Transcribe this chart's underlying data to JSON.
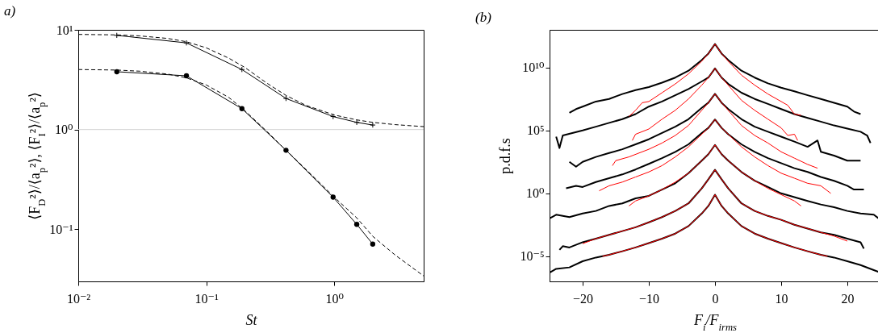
{
  "chart_data": [
    {
      "type": "line",
      "title": "a)",
      "xlabel": "St",
      "ylabel": "⟨F$_{D}$²⟩/⟨a$_{p}$²⟩, ⟨F$_{I}$²⟩/⟨a$_{p}$²⟩",
      "log": "xy",
      "xlim": [
        0.01,
        5
      ],
      "ylim": [
        0.03,
        10
      ],
      "xticks": [
        {
          "value": 0.01,
          "label": "10⁻²"
        },
        {
          "value": 0.1,
          "label": "10⁻¹"
        },
        {
          "value": 1,
          "label": "10⁰"
        }
      ],
      "yticks": [
        {
          "value": 0.1,
          "label": "10⁻¹"
        },
        {
          "value": 1,
          "label": "10⁰"
        },
        {
          "value": 10,
          "label": "10¹"
        }
      ],
      "ref_lines": [
        {
          "axis": "y",
          "value": 1,
          "color": "#d3d3d3"
        }
      ],
      "series": [
        {
          "color": "#000000",
          "marker": "cross",
          "line_style": "solid",
          "x": [
            0.02,
            0.07,
            0.19,
            0.42,
            0.98,
            1.5,
            2.0
          ],
          "values": [
            8.8,
            7.4,
            4.0,
            2.05,
            1.35,
            1.18,
            1.11
          ]
        },
        {
          "color": "#000000",
          "marker": "circle",
          "line_style": "solid",
          "x": [
            0.02,
            0.07,
            0.19,
            0.42,
            0.98,
            1.5,
            2.0
          ],
          "values": [
            3.8,
            3.46,
            1.62,
            0.62,
            0.21,
            0.112,
            0.071
          ]
        },
        {
          "color": "#000000",
          "marker": "none",
          "line_style": "dashed",
          "x": [
            0.01,
            0.02,
            0.03,
            0.05,
            0.07,
            0.1,
            0.15,
            0.2,
            0.3,
            0.42,
            0.6,
            1,
            1.5,
            2,
            3,
            5
          ],
          "values": [
            9.0,
            8.9,
            8.7,
            8.2,
            7.6,
            6.6,
            5.2,
            4.2,
            2.9,
            2.2,
            1.75,
            1.4,
            1.25,
            1.18,
            1.12,
            1.07
          ]
        },
        {
          "color": "#000000",
          "marker": "none",
          "line_style": "dashed",
          "x": [
            0.01,
            0.02,
            0.03,
            0.05,
            0.07,
            0.1,
            0.15,
            0.2,
            0.3,
            0.42,
            0.6,
            1,
            1.5,
            2,
            3,
            5
          ],
          "values": [
            4.0,
            3.95,
            3.85,
            3.6,
            3.3,
            2.8,
            2.1,
            1.55,
            0.95,
            0.62,
            0.4,
            0.21,
            0.13,
            0.085,
            0.055,
            0.034
          ]
        }
      ]
    },
    {
      "type": "line",
      "title": "(b)",
      "xlabel": "F$_{i}$/F$_{irms}$",
      "ylabel": "p.d.f.s",
      "log": "y",
      "xlim": [
        -25,
        25
      ],
      "ylim": [
        1e-07,
        10000000000000.0
      ],
      "xticks": [
        {
          "value": -20,
          "label": "−20"
        },
        {
          "value": -10,
          "label": "−10"
        },
        0,
        10,
        20
      ],
      "yticks": [
        {
          "value": 1e-05,
          "label": "10⁻⁵"
        },
        {
          "value": 1,
          "label": "10⁰"
        },
        {
          "value": 100000.0,
          "label": "10⁵"
        },
        {
          "value": 10000000000.0,
          "label": "10¹⁰"
        }
      ],
      "series": [
        {
          "color": "#000000",
          "x": [
            -22,
            -21,
            -20,
            -18,
            -16,
            -14,
            -12,
            -10,
            -8,
            -6,
            -4,
            -2,
            -1,
            0,
            1,
            2,
            4,
            6,
            8,
            10,
            12,
            14,
            16,
            18,
            20,
            21,
            22
          ],
          "values": [
            2500000.0,
            5000000.0,
            7900000.0,
            20000000.0,
            32000000.0,
            79000000.0,
            160000000.0,
            280000000.0,
            630000000.0,
            1600000000.0,
            5600000000.0,
            40000000000.0,
            130000000000.0,
            740000000000.0,
            130000000000.0,
            40000000000.0,
            5600000000.0,
            1600000000.0,
            560000000.0,
            250000000.0,
            130000000.0,
            63000000.0,
            32000000.0,
            16000000.0,
            7900000.0,
            3200000.0,
            2000000.0
          ]
        },
        {
          "color": "#000000",
          "x": [
            -24,
            -23.5,
            -23,
            -20,
            -18,
            -16,
            -14,
            -12,
            -10,
            -8,
            -6,
            -4,
            -2,
            -1,
            0,
            1,
            2,
            4,
            6,
            8,
            10,
            12,
            14,
            16,
            18,
            20,
            22,
            23,
            23.5
          ],
          "values": [
            32000.0,
            4000.0,
            40000.0,
            100000.0,
            200000.0,
            400000.0,
            790000.0,
            2000000.0,
            7900000.0,
            20000000.0,
            63000000.0,
            200000000.0,
            790000000.0,
            1600000000.0,
            8500000000.0,
            1600000000.0,
            500000000.0,
            100000000.0,
            32000000.0,
            13000000.0,
            5000000.0,
            2000000.0,
            1000000.0,
            500000.0,
            250000.0,
            140000.0,
            79000.0,
            40000.0,
            10000.0
          ]
        },
        {
          "color": "#000000",
          "x": [
            -22,
            -21,
            -20,
            -18,
            -16,
            -14,
            -12,
            -10,
            -8,
            -6,
            -4,
            -2,
            -1,
            0,
            1,
            2,
            4,
            6,
            8,
            10,
            12,
            14,
            15.5,
            16,
            18,
            20,
            22
          ],
          "values": [
            320,
            130,
            320,
            790,
            1600.0,
            3200.0,
            7900.0,
            20000.0,
            63000.0,
            200000.0,
            790000.0,
            6300000.0,
            16000000.0,
            81000000.0,
            16000000.0,
            5000000.0,
            790000.0,
            200000.0,
            79000.0,
            32000.0,
            13000.0,
            5000.0,
            16000.0,
            2000.0,
            1000.0,
            400,
            400
          ]
        },
        {
          "color": "#000000",
          "x": [
            -22.5,
            -21,
            -20,
            -18,
            -16,
            -14,
            -12,
            -10,
            -8,
            -6,
            -4,
            -2,
            -1,
            0,
            1,
            2,
            4,
            6,
            8,
            10,
            12,
            14,
            16,
            18,
            20,
            21,
            22.5
          ],
          "values": [
            2.5,
            4.0,
            3.2,
            7.9,
            16,
            32,
            79,
            220,
            630,
            2000.0,
            7900.0,
            63000.0,
            160000.0,
            740000.0,
            160000.0,
            50000.0,
            7900.0,
            2000.0,
            630,
            250,
            100,
            50,
            20,
            10,
            4.0,
            2.0,
            2.0
          ]
        },
        {
          "color": "#000000",
          "x": [
            -25,
            -24,
            -22,
            -20,
            -18,
            -16,
            -14,
            -12,
            -10,
            -8,
            -6,
            -4,
            -2,
            -1,
            0,
            1,
            2,
            4,
            6,
            8,
            10,
            12,
            14,
            16,
            18,
            20,
            22,
            24,
            25
          ],
          "values": [
            0.01,
            0.02,
            0.013,
            0.025,
            0.04,
            0.1,
            0.16,
            0.4,
            0.63,
            2.0,
            6.3,
            40,
            400,
            1300.0,
            7100.0,
            1300.0,
            400,
            50,
            10,
            3.2,
            1.0,
            0.5,
            0.25,
            0.13,
            0.079,
            0.04,
            0.025,
            0.02,
            0.0079
          ]
        },
        {
          "color": "#000000",
          "x": [
            -23.5,
            -23,
            -22,
            -20,
            -18,
            -16,
            -14,
            -12,
            -10,
            -8,
            -6,
            -4,
            -2,
            -1,
            0,
            1,
            2,
            4,
            6,
            8,
            10,
            12,
            14,
            16,
            18,
            20,
            22,
            22.5
          ],
          "values": [
            3.2e-05,
            6.3e-05,
            5e-05,
            0.00013,
            0.00025,
            0.0005,
            0.001,
            0.002,
            0.005,
            0.013,
            0.04,
            0.16,
            2.5,
            13,
            74,
            13,
            2.5,
            0.16,
            0.04,
            0.016,
            0.0079,
            0.0032,
            0.0016,
            0.00079,
            0.0005,
            0.00025,
            0.00013,
            4e-05
          ]
        },
        {
          "color": "#000000",
          "x": [
            -25,
            -24,
            -22,
            -20,
            -18,
            -16,
            -14,
            -12,
            -10,
            -8,
            -6,
            -4,
            -2,
            -1,
            0,
            1,
            2,
            4,
            6,
            8,
            10,
            12,
            14,
            16,
            18,
            20,
            22,
            24,
            25
          ],
          "values": [
            5e-07,
            1e-06,
            1.3e-06,
            4e-06,
            7.9e-06,
            1.3e-05,
            2.5e-05,
            5e-05,
            0.00011,
            0.00025,
            0.00063,
            0.0025,
            0.025,
            0.1,
            0.78,
            0.1,
            0.025,
            0.0025,
            0.00063,
            0.00025,
            0.00011,
            5e-05,
            2.5e-05,
            1.3e-05,
            7.9e-06,
            4e-06,
            2e-06,
            7.9e-07,
            5e-07
          ]
        },
        {
          "color": "#ff0000",
          "x": [
            -13,
            -12,
            -11,
            -10,
            -8,
            -6,
            -4,
            -2,
            -1,
            0,
            1,
            2,
            4,
            6,
            8,
            10,
            11,
            12,
            13
          ],
          "values": [
            1300000.0,
            4000000.0,
            16000000.0,
            20000000.0,
            100000000.0,
            500000000.0,
            3200000000.0,
            32000000000.0,
            130000000000.0,
            740000000000.0,
            130000000000.0,
            32000000000.0,
            2500000000.0,
            400000000.0,
            79000000.0,
            20000000.0,
            10000000.0,
            2000000.0,
            1600000.0
          ]
        },
        {
          "color": "#ff0000",
          "x": [
            -12.5,
            -12,
            -10,
            -8,
            -6,
            -4,
            -2,
            -1,
            0,
            1,
            2,
            4,
            6,
            8,
            10,
            11,
            12,
            12.5
          ],
          "values": [
            16000.0,
            50000.0,
            130000.0,
            790000.0,
            4000000.0,
            32000000.0,
            400000000.0,
            1600000000.0,
            8500000000.0,
            1600000000.0,
            400000000.0,
            25000000.0,
            4000000.0,
            790000.0,
            160000.0,
            40000.0,
            50000.0,
            16000.0
          ]
        },
        {
          "color": "#ff0000",
          "x": [
            -15.5,
            -15,
            -13,
            -10,
            -8,
            -6,
            -4,
            -2,
            -1,
            0,
            1,
            2,
            4,
            6,
            8,
            10,
            12,
            14,
            15.5
          ],
          "values": [
            160,
            400,
            790,
            3200.0,
            10000.0,
            40000.0,
            250000.0,
            4000000.0,
            16000000.0,
            81000000.0,
            16000000.0,
            4000000.0,
            250000.0,
            40000.0,
            10000.0,
            2000.0,
            630,
            200,
            100
          ]
        },
        {
          "color": "#ff0000",
          "x": [
            -17.5,
            -16,
            -14,
            -12,
            -10,
            -8,
            -6,
            -4,
            -2,
            -1,
            0,
            1,
            2,
            4,
            6,
            8,
            10,
            12,
            14,
            16,
            17.5
          ],
          "values": [
            1.6,
            4.0,
            7.9,
            20,
            50,
            160,
            790,
            5000.0,
            50000.0,
            160000.0,
            740000.0,
            160000.0,
            50000.0,
            5000.0,
            790,
            160,
            40,
            16,
            6.3,
            4.0,
            1.0
          ]
        },
        {
          "color": "#ff0000",
          "x": [
            -13,
            -12,
            -10,
            -8,
            -6,
            -4,
            -2,
            -1,
            0,
            1,
            2,
            4,
            6,
            8,
            10,
            12,
            13
          ],
          "values": [
            0.1,
            0.25,
            0.63,
            2.0,
            7.9,
            40,
            400,
            1300.0,
            7100.0,
            1300.0,
            400,
            50,
            10,
            2.5,
            0.79,
            0.25,
            0.1
          ]
        },
        {
          "color": "#ff0000",
          "x": [
            -20,
            -18,
            -16,
            -14,
            -12,
            -10,
            -8,
            -6,
            -4,
            -2,
            -1,
            0,
            1,
            2,
            4,
            6,
            8,
            10,
            12,
            14,
            16,
            18,
            20
          ],
          "values": [
            0.0001,
            0.00025,
            0.0005,
            0.001,
            0.002,
            0.005,
            0.013,
            0.04,
            0.16,
            2.5,
            13,
            74,
            13,
            2.5,
            0.16,
            0.04,
            0.016,
            0.0079,
            0.0032,
            0.0016,
            0.00079,
            0.0004,
            0.00016
          ]
        },
        {
          "color": "#ff0000",
          "x": [
            -17,
            -16,
            -14,
            -12,
            -10,
            -8,
            -6,
            -4,
            -2,
            -1,
            0,
            1,
            2,
            4,
            6,
            8,
            10,
            12,
            14,
            16,
            17
          ],
          "values": [
            1e-05,
            1.3e-05,
            2.5e-05,
            5e-05,
            0.00011,
            0.00025,
            0.00063,
            0.0025,
            0.025,
            0.1,
            0.78,
            0.1,
            0.025,
            0.0025,
            0.00063,
            0.00025,
            0.00011,
            5e-05,
            2.5e-05,
            1.3e-05,
            1e-05
          ]
        }
      ]
    }
  ]
}
